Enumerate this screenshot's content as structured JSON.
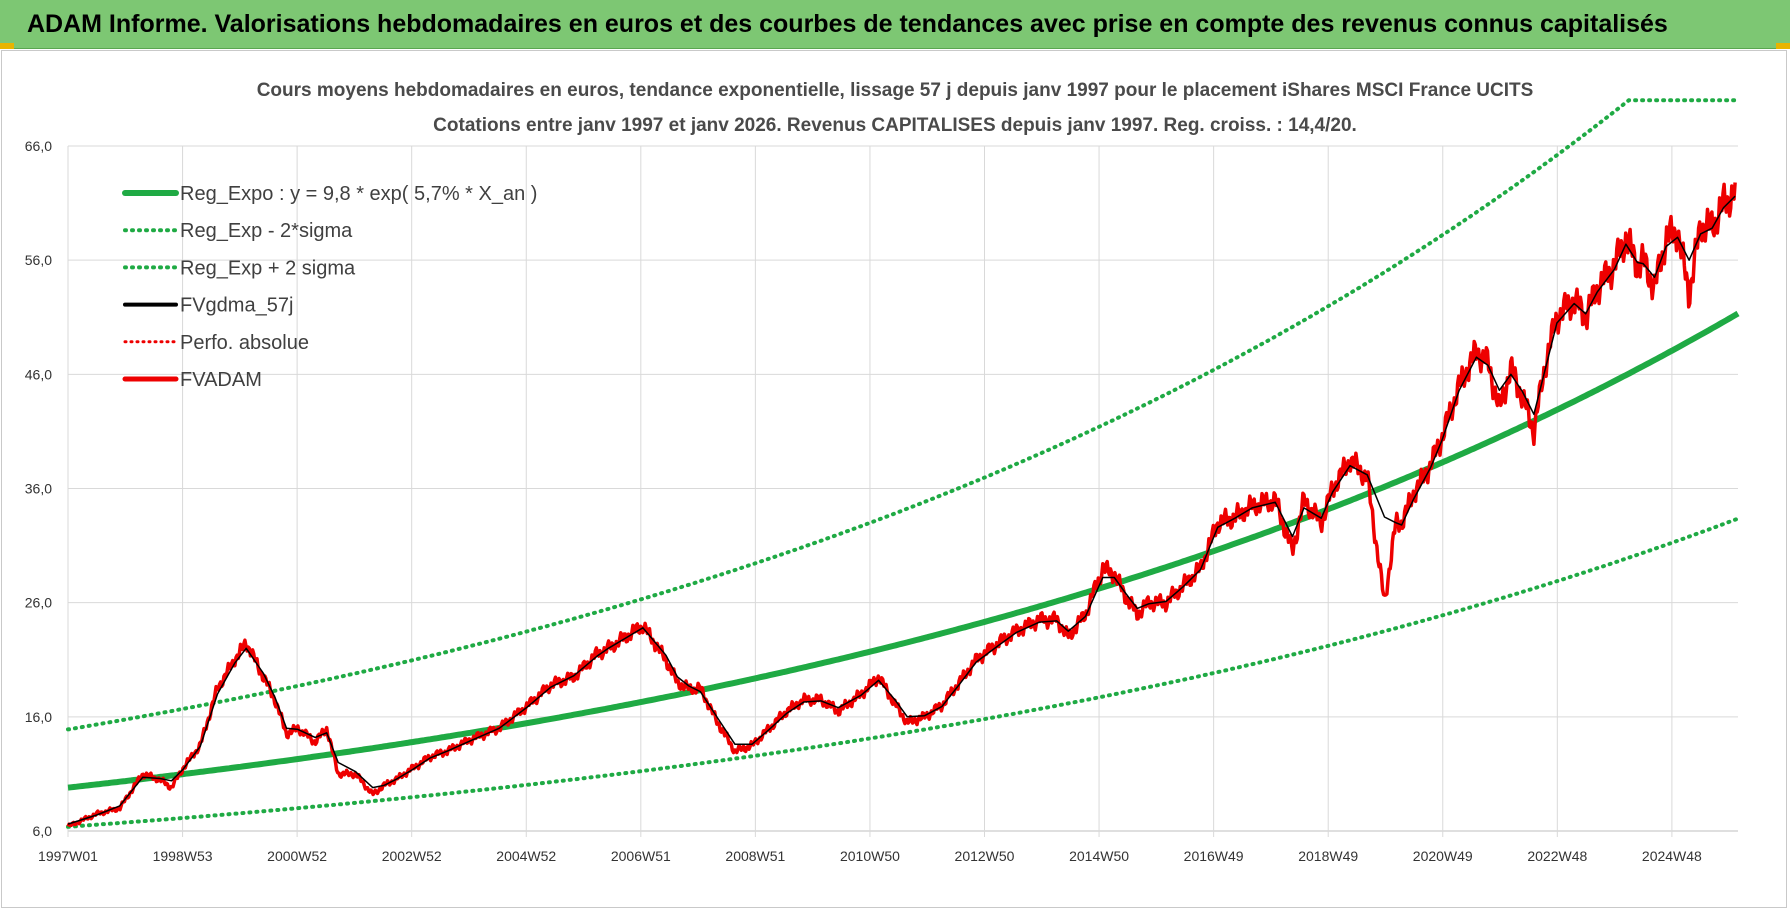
{
  "header": {
    "title": "ADAM Informe. Valorisations hebdomadaires en euros et des courbes de tendances avec prise en compte des revenus connus capitalisés"
  },
  "colors": {
    "banner": "#7dc773",
    "regression": "#1faa44",
    "bands": "#1faa44",
    "smoothed": "#000000",
    "fvadam": "#ee0000",
    "perfo": "#ee0000"
  },
  "chart_data": {
    "type": "line",
    "title": "Cours moyens hebdomadaires en euros, tendance exponentielle, lissage 57 j depuis janv 1997 pour le placement iShares MSCI France UCITS",
    "subtitle": "Cotations entre janv 1997 et janv 2026. Revenus CAPITALISES depuis janv 1997. Reg. croiss. : 14,4/20.",
    "x_tick_labels": [
      "1997W01",
      "1998W53",
      "2000W52",
      "2002W52",
      "2004W52",
      "2006W51",
      "2008W51",
      "2010W50",
      "2012W50",
      "2014W50",
      "2016W49",
      "2018W49",
      "2020W49",
      "2022W48",
      "2024W48"
    ],
    "y_tick_labels": [
      "6,0",
      "16,0",
      "26,0",
      "36,0",
      "46,0",
      "56,0",
      "66,0"
    ],
    "xlim": [
      1997.0,
      2026.05
    ],
    "ylim": [
      6,
      66
    ],
    "grid": true,
    "legend_position": "top-left",
    "legend": [
      {
        "label": "Reg_Expo : y = 9,8 * exp( 5,7% *  X_an )",
        "style": "solid-green"
      },
      {
        "label": "Reg_Exp - 2*sigma",
        "style": "dotted-green"
      },
      {
        "label": "Reg_Exp + 2 sigma",
        "style": "dotted-green"
      },
      {
        "label": "FVgdma_57j",
        "style": "solid-black"
      },
      {
        "label": "Perfo. absolue",
        "style": "dotted-red"
      },
      {
        "label": "FVADAM",
        "style": "solid-red"
      }
    ],
    "regression": {
      "a": 9.8,
      "rate": 0.057,
      "lower_factor": 0.65,
      "upper_factor": 1.52,
      "cap": 70
    },
    "series": [
      {
        "name": "FVADAM",
        "x": [
          1997.0,
          1997.5,
          1997.9,
          1998.3,
          1998.6,
          1998.8,
          1999.0,
          1999.3,
          1999.6,
          1999.9,
          2000.1,
          2000.4,
          2000.6,
          2000.8,
          2001.0,
          2001.3,
          2001.5,
          2001.7,
          2002.0,
          2002.3,
          2002.5,
          2002.7,
          2003.0,
          2003.3,
          2003.6,
          2004.0,
          2004.5,
          2005.0,
          2005.4,
          2005.8,
          2006.2,
          2006.4,
          2006.7,
          2007.0,
          2007.4,
          2007.6,
          2007.8,
          2008.0,
          2008.3,
          2008.6,
          2008.9,
          2009.2,
          2009.5,
          2009.8,
          2010.1,
          2010.4,
          2010.8,
          2011.1,
          2011.4,
          2011.6,
          2011.9,
          2012.2,
          2012.5,
          2012.8,
          2013.2,
          2013.5,
          2013.9,
          2014.2,
          2014.4,
          2014.7,
          2015.0,
          2015.2,
          2015.4,
          2015.6,
          2015.8,
          2016.1,
          2016.4,
          2016.7,
          2017.0,
          2017.3,
          2017.6,
          2018.0,
          2018.3,
          2018.5,
          2018.8,
          2019.0,
          2019.3,
          2019.6,
          2019.9,
          2020.1,
          2020.2,
          2020.4,
          2020.7,
          2020.9,
          2021.2,
          2021.5,
          2021.7,
          2021.9,
          2022.1,
          2022.3,
          2022.5,
          2022.7,
          2022.9,
          2023.2,
          2023.4,
          2023.6,
          2023.9,
          2024.1,
          2024.3,
          2024.4,
          2024.6,
          2024.8,
          2025.0,
          2025.2,
          2025.4,
          2025.6,
          2025.8,
          2026.0
        ],
        "values": [
          6.4,
          7.5,
          8.0,
          11.0,
          10.5,
          9.8,
          11.5,
          13.5,
          18.5,
          21.0,
          22.5,
          19.5,
          17.5,
          14.5,
          15.0,
          13.8,
          15.0,
          11.0,
          11.0,
          9.2,
          10.0,
          10.5,
          11.5,
          12.5,
          13.0,
          14.0,
          15.0,
          17.0,
          18.8,
          19.5,
          21.5,
          22.0,
          23.0,
          24.0,
          21.0,
          19.0,
          18.5,
          18.5,
          15.5,
          13.0,
          13.5,
          15.0,
          16.5,
          17.5,
          17.5,
          16.5,
          18.0,
          19.5,
          17.0,
          15.5,
          16.0,
          17.0,
          19.0,
          21.0,
          22.5,
          23.5,
          24.5,
          24.5,
          23.0,
          25.0,
          29.0,
          28.5,
          26.5,
          25.0,
          26.0,
          26.0,
          27.5,
          29.0,
          33.0,
          33.5,
          34.5,
          35.0,
          30.5,
          35.0,
          33.0,
          36.0,
          38.5,
          37.0,
          26.0,
          33.0,
          33.0,
          35.5,
          38.0,
          40.5,
          45.0,
          48.0,
          47.0,
          43.0,
          46.5,
          44.0,
          41.0,
          47.0,
          51.0,
          52.5,
          51.0,
          53.5,
          55.5,
          58.0,
          55.5,
          56.0,
          53.5,
          58.0,
          58.5,
          53.0,
          59.0,
          59.0,
          61.0,
          62.0
        ]
      },
      {
        "name": "FVgdma_57j",
        "x": [
          1997.0,
          1997.5,
          1997.9,
          1998.3,
          1998.6,
          1998.8,
          1999.0,
          1999.3,
          1999.6,
          1999.9,
          2000.1,
          2000.4,
          2000.6,
          2000.8,
          2001.0,
          2001.3,
          2001.5,
          2001.7,
          2002.0,
          2002.3,
          2002.5,
          2002.7,
          2003.0,
          2003.3,
          2003.6,
          2004.0,
          2004.5,
          2005.0,
          2005.4,
          2005.8,
          2006.2,
          2006.4,
          2006.7,
          2007.0,
          2007.4,
          2007.6,
          2007.8,
          2008.0,
          2008.3,
          2008.6,
          2008.9,
          2009.2,
          2009.5,
          2009.8,
          2010.1,
          2010.4,
          2010.8,
          2011.1,
          2011.4,
          2011.6,
          2011.9,
          2012.2,
          2012.5,
          2012.8,
          2013.2,
          2013.5,
          2013.9,
          2014.2,
          2014.4,
          2014.7,
          2015.0,
          2015.2,
          2015.4,
          2015.6,
          2015.8,
          2016.1,
          2016.4,
          2016.7,
          2017.0,
          2017.3,
          2017.6,
          2018.0,
          2018.3,
          2018.5,
          2018.8,
          2019.0,
          2019.3,
          2019.6,
          2019.9,
          2020.1,
          2020.2,
          2020.4,
          2020.7,
          2020.9,
          2021.2,
          2021.5,
          2021.7,
          2021.9,
          2022.1,
          2022.3,
          2022.5,
          2022.7,
          2022.9,
          2023.2,
          2023.4,
          2023.6,
          2023.9,
          2024.1,
          2024.3,
          2024.4,
          2024.6,
          2024.8,
          2025.0,
          2025.2,
          2025.4,
          2025.6,
          2025.8,
          2026.0
        ],
        "values": [
          6.6,
          7.4,
          8.2,
          10.7,
          10.6,
          10.4,
          11.4,
          13.4,
          18.0,
          20.7,
          22.0,
          19.8,
          17.7,
          15.0,
          14.9,
          14.2,
          14.6,
          12.0,
          11.2,
          9.8,
          10.0,
          10.5,
          11.4,
          12.4,
          13.0,
          13.9,
          15.0,
          16.9,
          18.6,
          19.6,
          21.3,
          22.0,
          22.9,
          23.8,
          21.4,
          19.5,
          18.7,
          18.2,
          15.9,
          13.6,
          13.6,
          14.9,
          16.3,
          17.3,
          17.4,
          16.8,
          17.9,
          19.2,
          17.4,
          16.0,
          16.1,
          16.9,
          18.8,
          20.8,
          22.3,
          23.4,
          24.3,
          24.4,
          23.5,
          24.8,
          28.2,
          28.2,
          26.8,
          25.5,
          25.9,
          26.1,
          27.4,
          28.9,
          32.6,
          33.4,
          34.3,
          34.8,
          31.8,
          34.3,
          33.4,
          35.7,
          38.0,
          37.2,
          33.5,
          33.0,
          32.8,
          35.0,
          37.8,
          40.2,
          44.6,
          47.5,
          46.8,
          44.6,
          46.0,
          44.5,
          42.5,
          46.5,
          50.5,
          52.2,
          51.3,
          53.2,
          55.2,
          57.4,
          55.8,
          55.7,
          54.5,
          57.2,
          58.0,
          56.0,
          58.3,
          58.8,
          60.6,
          61.6
        ]
      }
    ]
  }
}
